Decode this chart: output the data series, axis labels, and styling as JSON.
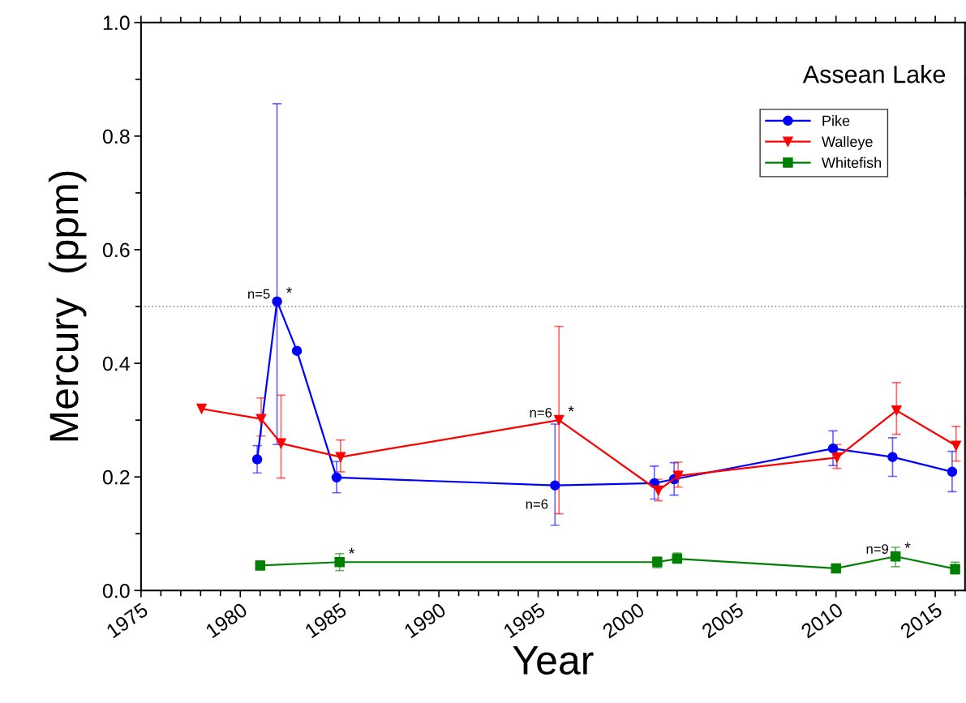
{
  "chart_data": {
    "type": "line",
    "title": "Assean Lake",
    "xlabel": "Year",
    "ylabel": "Mercury  (ppm)",
    "xlim": [
      1975,
      2016.5
    ],
    "xticks": [
      1975,
      1980,
      1985,
      1990,
      1995,
      2000,
      2005,
      2010,
      2015
    ],
    "ylim": [
      0,
      1.0
    ],
    "yticks": [
      {
        "value": 0,
        "label": "0.0"
      },
      0.2,
      0.4,
      0.6,
      0.8,
      {
        "value": 1.0,
        "label": "1.0"
      }
    ],
    "grid": false,
    "legend": "top right",
    "line_style": "solid",
    "series": [
      {
        "name": "Pike",
        "color": "#0000ff",
        "marker": "circle",
        "x": [
          1980.85,
          1981.85,
          1982.85,
          1984.85,
          1995.85,
          2000.85,
          2001.85,
          2009.85,
          2012.85,
          2015.85
        ],
        "values": [
          0.231,
          0.509,
          0.422,
          0.199,
          0.185,
          0.189,
          0.196,
          0.25,
          0.235,
          0.209
        ],
        "errors": [
          [
            0.207,
            0.255
          ],
          [
            0.257,
            0.857
          ],
          null,
          [
            0.172,
            0.227
          ],
          [
            0.115,
            0.293
          ],
          [
            0.161,
            0.219
          ],
          [
            0.168,
            0.225
          ],
          [
            0.22,
            0.281
          ],
          [
            0.201,
            0.269
          ],
          [
            0.174,
            0.245
          ]
        ]
      },
      {
        "name": "Walleye",
        "color": "#ff0000",
        "marker": "triangle",
        "x": [
          1978.05,
          1981.05,
          1982.05,
          1985.05,
          1996.05,
          2001.05,
          2002.05,
          2010.05,
          2013.05,
          2016.05
        ],
        "values": [
          0.32,
          0.302,
          0.259,
          0.235,
          0.3,
          0.176,
          0.202,
          0.234,
          0.317,
          0.255
        ],
        "errors": [
          null,
          [
            0.272,
            0.339
          ],
          [
            0.198,
            0.344
          ],
          [
            0.209,
            0.265
          ],
          [
            0.135,
            0.465
          ],
          [
            0.158,
            0.196
          ],
          [
            0.182,
            0.226
          ],
          [
            0.215,
            0.257
          ],
          [
            0.275,
            0.366
          ],
          [
            0.228,
            0.289
          ]
        ]
      },
      {
        "name": "Whitefish",
        "color": "#008000",
        "marker": "square",
        "x": [
          1981,
          1985,
          2001,
          2002,
          2010,
          2013,
          2016
        ],
        "values": [
          0.044,
          0.05,
          0.05,
          0.056,
          0.039,
          0.06,
          0.038
        ],
        "errors": [
          [
            0.038,
            0.052
          ],
          [
            0.035,
            0.065
          ],
          [
            0.04,
            0.059
          ],
          [
            0.049,
            0.066
          ],
          null,
          [
            0.042,
            0.076
          ],
          [
            0.029,
            0.05
          ]
        ]
      }
    ],
    "ref_lines": [
      {
        "axis": "y",
        "value": 0.5,
        "color": "#888888",
        "line_style": "dotted"
      }
    ],
    "annotations": [
      {
        "text": "n=5",
        "x": 1981.85,
        "y": 0.509
      },
      {
        "text": "*",
        "x": 1981.85,
        "y": 0.509
      },
      {
        "text": "n=6",
        "x": 1996.05,
        "y": 0.3
      },
      {
        "text": "*",
        "x": 1996.05,
        "y": 0.3
      },
      {
        "text": "n=6",
        "x": 1995.85,
        "y": 0.185
      },
      {
        "text": "*",
        "x": 1985,
        "y": 0.05
      },
      {
        "text": "n=9",
        "x": 2013,
        "y": 0.06
      },
      {
        "text": "*",
        "x": 2013,
        "y": 0.06
      }
    ]
  }
}
